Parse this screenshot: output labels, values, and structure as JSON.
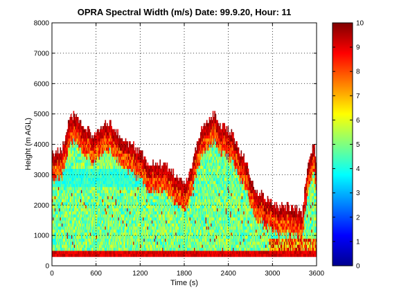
{
  "chart_data": {
    "type": "heatmap",
    "title": "OPRA Spectral Width (m/s)  Date: 99.9.20, Hour: 11",
    "xlabel": "Time (s)",
    "ylabel": "Height (m AGL)",
    "xlim": [
      0,
      3600
    ],
    "ylim": [
      0,
      8000
    ],
    "x_ticks": [
      0,
      600,
      1200,
      1800,
      2400,
      3000,
      3600
    ],
    "y_ticks": [
      0,
      1000,
      2000,
      3000,
      4000,
      5000,
      6000,
      7000,
      8000
    ],
    "grid": true,
    "colorbar": {
      "range": [
        0,
        10
      ],
      "ticks": [
        0,
        1,
        2,
        3,
        4,
        5,
        6,
        7,
        8,
        9,
        10
      ],
      "colormap": "jet"
    },
    "data_top_height_m": [
      [
        0,
        3700
      ],
      [
        120,
        3700
      ],
      [
        180,
        4100
      ],
      [
        240,
        4800
      ],
      [
        300,
        4900
      ],
      [
        400,
        4700
      ],
      [
        480,
        4400
      ],
      [
        560,
        4200
      ],
      [
        640,
        4400
      ],
      [
        720,
        4700
      ],
      [
        800,
        4600
      ],
      [
        900,
        4300
      ],
      [
        1000,
        4100
      ],
      [
        1100,
        3900
      ],
      [
        1200,
        3700
      ],
      [
        1300,
        3400
      ],
      [
        1400,
        3300
      ],
      [
        1500,
        3300
      ],
      [
        1560,
        3200
      ],
      [
        1650,
        3000
      ],
      [
        1750,
        2800
      ],
      [
        1800,
        2600
      ],
      [
        1850,
        2800
      ],
      [
        1900,
        3300
      ],
      [
        1950,
        3800
      ],
      [
        2000,
        4200
      ],
      [
        2050,
        4500
      ],
      [
        2150,
        4700
      ],
      [
        2200,
        5000
      ],
      [
        2250,
        4700
      ],
      [
        2350,
        4500
      ],
      [
        2450,
        4300
      ],
      [
        2550,
        3800
      ],
      [
        2650,
        3300
      ],
      [
        2700,
        2700
      ],
      [
        2800,
        2400
      ],
      [
        2900,
        2200
      ],
      [
        3000,
        2000
      ],
      [
        3100,
        1900
      ],
      [
        3250,
        1900
      ],
      [
        3400,
        1700
      ],
      [
        3500,
        3500
      ],
      [
        3560,
        3900
      ],
      [
        3600,
        3400
      ]
    ],
    "data_bottom_height_m": 300
  },
  "colors": {
    "plot_background": "#ffffff",
    "grid": "#000000"
  }
}
